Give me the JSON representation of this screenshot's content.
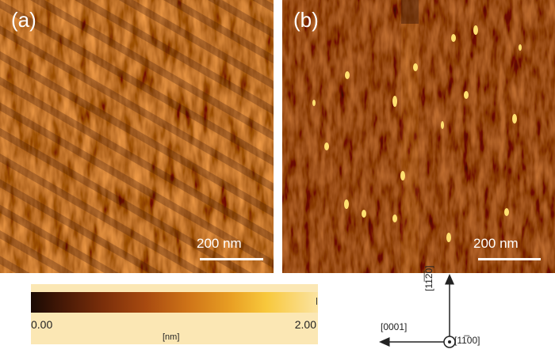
{
  "panels": [
    {
      "label": "(a)",
      "scale_bar": "200 nm"
    },
    {
      "label": "(b)",
      "scale_bar": "200 nm"
    }
  ],
  "colorbar": {
    "min_label": "0.00",
    "max_label": "2.00",
    "unit": "[nm]",
    "colors": [
      "#1a0a04",
      "#4a1a06",
      "#7a2e0a",
      "#a84a10",
      "#cf7418",
      "#e9a024",
      "#f8c83c",
      "#fbe3a0"
    ]
  },
  "axes": {
    "up": "[11̅2̅0]",
    "left": "[0001]",
    "out_of_plane": "[11̅00]"
  }
}
